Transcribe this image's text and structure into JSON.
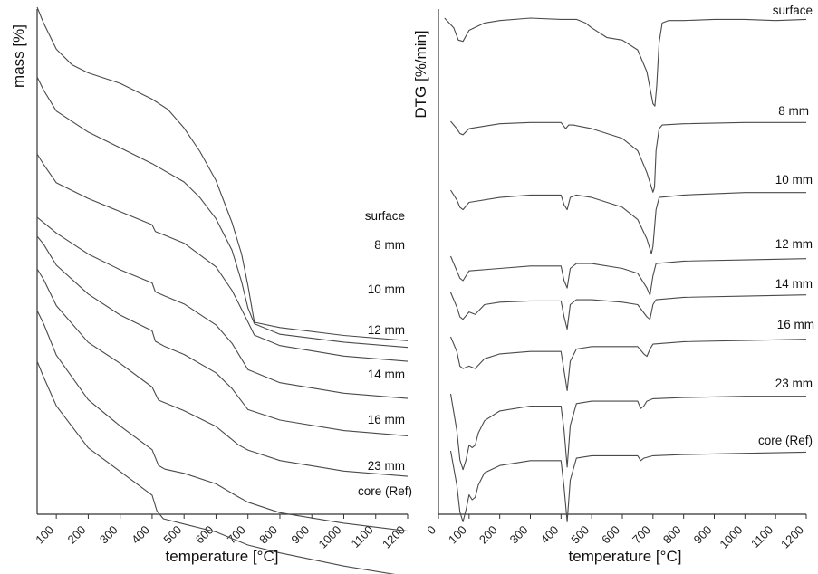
{
  "chart_data": [
    {
      "type": "line",
      "panel": "left",
      "xlabel": "temperature [°C]",
      "ylabel": "mass [%]",
      "xlim": [
        40,
        1200
      ],
      "xticks": [
        100,
        200,
        300,
        400,
        500,
        600,
        700,
        800,
        900,
        1000,
        1100,
        1200
      ],
      "y_tick_labels": "none",
      "grid": false,
      "series": [
        {
          "name": "surface",
          "x": [
            40,
            60,
            100,
            150,
            200,
            300,
            400,
            450,
            500,
            550,
            600,
            650,
            680,
            700,
            720,
            800,
            1000,
            1200
          ],
          "y": [
            100,
            97,
            92,
            89,
            87.5,
            85.5,
            82.5,
            80.5,
            77,
            72.5,
            67,
            59,
            53,
            47,
            40,
            39,
            37.5,
            36.5
          ]
        },
        {
          "name": "8 mm",
          "x": [
            40,
            60,
            100,
            200,
            300,
            400,
            500,
            550,
            600,
            650,
            680,
            700,
            720,
            800,
            1000,
            1200
          ],
          "y": [
            89,
            86.5,
            82.5,
            78.5,
            75.5,
            72.5,
            69,
            66,
            62,
            56,
            50,
            45,
            42,
            40,
            38.5,
            37.5
          ]
        },
        {
          "name": "10 mm",
          "x": [
            40,
            60,
            100,
            200,
            300,
            400,
            410,
            440,
            500,
            600,
            650,
            700,
            720,
            800,
            1000,
            1200
          ],
          "y": [
            78,
            76,
            72.5,
            69.5,
            67,
            64.5,
            63.2,
            62.5,
            61,
            56.5,
            52,
            46,
            43.5,
            41.5,
            39.5,
            38.5
          ]
        },
        {
          "name": "12 mm",
          "x": [
            40,
            60,
            100,
            200,
            300,
            400,
            410,
            440,
            500,
            600,
            650,
            700,
            800,
            1000,
            1200
          ],
          "y": [
            70,
            69,
            67,
            63,
            60,
            57.5,
            55.8,
            55,
            53.5,
            49.5,
            46,
            41,
            38.5,
            36.5,
            35.5
          ]
        },
        {
          "name": "14 mm",
          "x": [
            40,
            60,
            100,
            200,
            300,
            400,
            410,
            440,
            500,
            600,
            650,
            700,
            800,
            1000,
            1200
          ],
          "y": [
            67.5,
            66,
            62,
            56.5,
            52.5,
            49.5,
            47.5,
            46.5,
            45,
            41.5,
            38.5,
            34.5,
            32.5,
            30.5,
            29.5
          ]
        },
        {
          "name": "16 mm",
          "x": [
            40,
            60,
            100,
            200,
            300,
            400,
            420,
            440,
            500,
            600,
            670,
            700,
            800,
            1000,
            1200
          ],
          "y": [
            63,
            61,
            56,
            49,
            45,
            40.5,
            38,
            37.5,
            36,
            33,
            29.5,
            28.5,
            26.5,
            24.5,
            23.5
          ]
        },
        {
          "name": "23 mm",
          "x": [
            40,
            60,
            100,
            200,
            300,
            400,
            420,
            440,
            500,
            600,
            670,
            700,
            800,
            1000,
            1200
          ],
          "y": [
            60.5,
            58,
            52,
            43.5,
            38.5,
            34,
            31,
            30.3,
            29.5,
            27.5,
            25,
            24,
            22,
            20,
            18.5
          ]
        },
        {
          "name": "core (Ref)",
          "x": [
            40,
            60,
            100,
            200,
            300,
            400,
            415,
            435,
            500,
            600,
            700,
            800,
            1000,
            1200
          ],
          "y": [
            53.5,
            50.5,
            45,
            37,
            32.5,
            28,
            25,
            23.5,
            22.5,
            21,
            18.5,
            17,
            14.5,
            12.5
          ]
        }
      ]
    },
    {
      "type": "line",
      "panel": "right",
      "xlabel": "temperature [°C]",
      "ylabel": "DTG [%/min]",
      "xlim": [
        0,
        1200
      ],
      "xticks": [
        0,
        100,
        200,
        300,
        400,
        500,
        600,
        700,
        800,
        900,
        1000,
        1100,
        1200
      ],
      "y_tick_labels": "none",
      "grid": false,
      "series": [
        {
          "name": "surface",
          "x": [
            20,
            50,
            65,
            80,
            100,
            150,
            200,
            300,
            400,
            450,
            480,
            500,
            550,
            600,
            650,
            680,
            700,
            706,
            712,
            720,
            730,
            750,
            800,
            900,
            1000,
            1100,
            1200
          ],
          "y": [
            0,
            -4,
            -9,
            -9.5,
            -5,
            -2,
            -1,
            0,
            -0.5,
            -0.5,
            -2,
            -4,
            -8,
            -9,
            -13,
            -22,
            -35,
            -36,
            -28,
            -10,
            -2,
            -1,
            -1,
            -0.5,
            -0.5,
            -1,
            -0.5
          ]
        },
        {
          "name": "8 mm",
          "x": [
            40,
            60,
            70,
            80,
            100,
            200,
            300,
            400,
            415,
            425,
            440,
            500,
            600,
            650,
            680,
            700,
            705,
            710,
            720,
            730,
            800,
            1000,
            1200
          ],
          "y": [
            0,
            -3,
            -5,
            -5.5,
            -3,
            -1,
            -0.5,
            -0.5,
            -3,
            -1.5,
            -1.5,
            -3,
            -7,
            -12,
            -21,
            -29,
            -27,
            -12,
            -3,
            -1.5,
            -1,
            -0.5,
            -0.5
          ]
        },
        {
          "name": "10 mm",
          "x": [
            40,
            60,
            70,
            80,
            100,
            200,
            300,
            400,
            410,
            420,
            430,
            450,
            500,
            600,
            650,
            680,
            695,
            700,
            710,
            720,
            800,
            1000,
            1200
          ],
          "y": [
            0,
            -4,
            -7,
            -8,
            -5,
            -3,
            -2,
            -2,
            -6,
            -8,
            -3,
            -2,
            -3,
            -7,
            -12,
            -20,
            -26,
            -23,
            -8,
            -3,
            -2,
            -1,
            -1
          ]
        },
        {
          "name": "12 mm",
          "x": [
            40,
            60,
            70,
            80,
            100,
            200,
            300,
            400,
            410,
            420,
            430,
            450,
            500,
            600,
            650,
            680,
            690,
            700,
            710,
            800,
            1000,
            1200
          ],
          "y": [
            0,
            -6,
            -9,
            -10,
            -6,
            -5,
            -4,
            -4,
            -10,
            -13,
            -5,
            -3,
            -3,
            -5,
            -7,
            -13,
            -16,
            -8,
            -3,
            -2,
            -1.5,
            -1
          ]
        },
        {
          "name": "14 mm",
          "x": [
            40,
            60,
            70,
            80,
            100,
            120,
            150,
            200,
            300,
            400,
            410,
            420,
            430,
            450,
            500,
            600,
            650,
            680,
            690,
            700,
            710,
            800,
            1000,
            1200
          ],
          "y": [
            0,
            -6,
            -10,
            -11,
            -8,
            -9,
            -5,
            -4,
            -3.5,
            -3.5,
            -10,
            -15,
            -5,
            -3,
            -3,
            -4,
            -5,
            -10,
            -11,
            -5,
            -3,
            -2,
            -1.5,
            -1
          ]
        },
        {
          "name": "16 mm",
          "x": [
            40,
            60,
            70,
            80,
            100,
            120,
            150,
            200,
            300,
            400,
            410,
            420,
            430,
            450,
            500,
            600,
            650,
            670,
            680,
            690,
            700,
            800,
            1000,
            1200
          ],
          "y": [
            0,
            -6,
            -12,
            -13,
            -12,
            -13,
            -9,
            -7,
            -6,
            -6,
            -14,
            -22,
            -10,
            -5,
            -4,
            -4,
            -4,
            -7,
            -8,
            -5,
            -3,
            -2,
            -1.5,
            -1
          ]
        },
        {
          "name": "23 mm",
          "x": [
            40,
            60,
            70,
            80,
            90,
            100,
            110,
            120,
            130,
            150,
            200,
            300,
            400,
            410,
            420,
            430,
            450,
            500,
            600,
            650,
            660,
            670,
            680,
            700,
            800,
            1000,
            1200
          ],
          "y": [
            0,
            -15,
            -27,
            -31,
            -27,
            -21,
            -22,
            -21,
            -16,
            -11,
            -7,
            -5,
            -5,
            -15,
            -30,
            -13,
            -4,
            -3,
            -3,
            -3,
            -6,
            -5,
            -3,
            -2,
            -1.5,
            -1,
            -1
          ]
        },
        {
          "name": "core (Ref)",
          "x": [
            40,
            60,
            70,
            80,
            90,
            100,
            110,
            120,
            130,
            150,
            200,
            300,
            400,
            410,
            420,
            430,
            450,
            500,
            600,
            650,
            660,
            670,
            700,
            800,
            1000,
            1200
          ],
          "y": [
            0,
            -14,
            -25,
            -29,
            -24,
            -18,
            -20,
            -19,
            -14,
            -9,
            -6,
            -4,
            -4,
            -15,
            -29,
            -12,
            -3,
            -2,
            -2,
            -2,
            -4,
            -3,
            -2,
            -1.5,
            -1,
            -0.5
          ]
        }
      ]
    }
  ]
}
